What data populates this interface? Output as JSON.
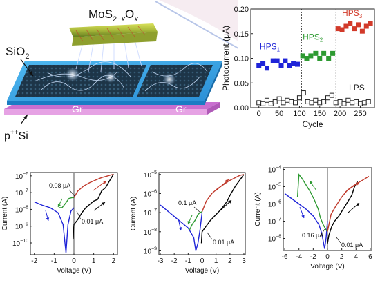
{
  "schematic": {
    "material_label_base": "MoS",
    "material_sub_1": "2−",
    "material_sub_x": "x",
    "material_o": "O",
    "material_sub_2": "x",
    "sio2_label": "SiO",
    "sio2_sub": "2",
    "gr_label_1": "Gr",
    "gr_label_2": "Gr",
    "si_label_p": "p",
    "si_label_sup": "++",
    "si_label_si": "Si",
    "colors": {
      "substrate_top": "#3fa9e6",
      "substrate_side": "#1e88d0",
      "si_layer": "#e48ae0",
      "graphene": "#1f3f57",
      "nanorod": "#a8b83a"
    }
  },
  "chart_data": [
    {
      "type": "scatter",
      "xlabel": "Cycle",
      "ylabel": "Photocurrent (μA)",
      "xlim": [
        -20,
        285
      ],
      "ylim": [
        0,
        0.2
      ],
      "x_ticks": [
        0,
        50,
        100,
        150,
        200,
        250
      ],
      "y_ticks": [
        0.0,
        0.05,
        0.1,
        0.15,
        0.2
      ],
      "y_tick_labels": [
        "0.00",
        "0.05",
        "0.10",
        "0.15",
        "0.20"
      ],
      "dividers": [
        105,
        190
      ],
      "series": [
        {
          "name": "HPS",
          "sub": "1",
          "color": "#1f24d8",
          "filled": true,
          "x": [
            0,
            10,
            20,
            35,
            45,
            55,
            65,
            75,
            85,
            95
          ],
          "y": [
            0.085,
            0.09,
            0.08,
            0.095,
            0.095,
            0.085,
            0.095,
            0.085,
            0.09,
            0.088
          ]
        },
        {
          "name": "HPS",
          "sub": "2",
          "color": "#2e9a32",
          "filled": true,
          "x": [
            108,
            118,
            128,
            140,
            150,
            160,
            172,
            182
          ],
          "y": [
            0.105,
            0.1,
            0.105,
            0.11,
            0.1,
            0.11,
            0.1,
            0.11
          ]
        },
        {
          "name": "HPS",
          "sub": "3",
          "color": "#d23a2a",
          "filled": true,
          "x": [
            195,
            205,
            215,
            225,
            235,
            245,
            255,
            265,
            275
          ],
          "y": [
            0.16,
            0.158,
            0.165,
            0.17,
            0.16,
            0.168,
            0.155,
            0.165,
            0.17
          ]
        },
        {
          "name": "LPS",
          "color": "#222222",
          "filled": false,
          "x": [
            0,
            10,
            20,
            30,
            40,
            50,
            60,
            70,
            80,
            90,
            100,
            110,
            120,
            130,
            140,
            150,
            160,
            170,
            180,
            190,
            200,
            210,
            220,
            230,
            240,
            250,
            260,
            270
          ],
          "y": [
            0.01,
            0.008,
            0.015,
            0.008,
            0.012,
            0.018,
            0.01,
            0.015,
            0.012,
            0.01,
            0.02,
            0.03,
            0.012,
            0.01,
            0.015,
            0.01,
            0.012,
            0.02,
            0.025,
            0.01,
            0.012,
            0.008,
            0.015,
            0.01,
            0.012,
            0.008,
            0.01,
            0.012
          ]
        }
      ]
    },
    {
      "type": "line",
      "log_y": true,
      "xlabel": "Voltage (V)",
      "ylabel": "Current (A)",
      "xlim": [
        -2.2,
        2.2
      ],
      "ylim_exp": [
        -10.7,
        -5.8
      ],
      "x_ticks": [
        -2,
        -1,
        0,
        1,
        2
      ],
      "y_tick_exps": [
        -10,
        -9,
        -8,
        -7,
        -6
      ],
      "annotations": [
        "0.08 μA",
        "0.01 μA"
      ],
      "series": [
        {
          "name": "",
          "color": "#1f24d8",
          "x": [
            -2.0,
            -1.6,
            -1.2,
            -0.8,
            -0.55,
            -0.4,
            -0.3,
            -0.15,
            0.0
          ],
          "logy": [
            -7.55,
            -7.75,
            -7.9,
            -8.2,
            -8.9,
            -10.6,
            -8.9,
            -8.1,
            -7.9
          ]
        },
        {
          "name": "",
          "color": "#2e9a32",
          "x": [
            -0.75,
            -0.6,
            -0.4,
            -0.25,
            -0.1,
            0.0
          ],
          "logy": [
            -7.9,
            -7.9,
            -7.6,
            -7.35,
            -7.3,
            -7.3
          ]
        },
        {
          "name": "",
          "color": "#000000",
          "x": [
            -0.05,
            0.0,
            0.2,
            0.4,
            0.6,
            0.8,
            1.0,
            1.2,
            1.4,
            1.6,
            1.8,
            2.0
          ],
          "logy": [
            -9.8,
            -8.9,
            -8.6,
            -8.2,
            -7.9,
            -7.7,
            -7.5,
            -7.4,
            -6.9,
            -6.7,
            -6.3,
            -5.9
          ]
        },
        {
          "name": "",
          "color": "#c0392b",
          "x": [
            0.0,
            0.2,
            0.5,
            0.8,
            1.1,
            1.4,
            1.7,
            2.0
          ],
          "logy": [
            -7.3,
            -6.9,
            -6.6,
            -6.4,
            -6.25,
            -6.1,
            -6.0,
            -5.9
          ]
        }
      ]
    },
    {
      "type": "line",
      "log_y": true,
      "xlabel": "Voltage (V)",
      "ylabel": "Current (A)",
      "xlim": [
        -3.1,
        3.1
      ],
      "ylim_exp": [
        -9.2,
        -4.9
      ],
      "x_ticks": [
        -3,
        -2,
        -1,
        0,
        1,
        2,
        3
      ],
      "y_tick_exps": [
        -9,
        -8,
        -7,
        -6,
        -5
      ],
      "annotations": [
        "0.1 μA",
        "0.01 μA"
      ],
      "series": [
        {
          "name": "",
          "color": "#1f24d8",
          "x": [
            -3.0,
            -2.5,
            -2.0,
            -1.5,
            -1.0,
            -0.6,
            -0.45,
            -0.3,
            -0.15,
            0.0
          ],
          "logy": [
            -6.6,
            -6.9,
            -7.2,
            -7.5,
            -7.8,
            -8.3,
            -9.0,
            -8.6,
            -7.9,
            -7.0
          ]
        },
        {
          "name": "",
          "color": "#2e9a32",
          "x": [
            -0.9,
            -0.7,
            -0.5,
            -0.3,
            -0.15,
            0.0
          ],
          "logy": [
            -7.9,
            -7.6,
            -7.4,
            -7.1,
            -7.0,
            -6.95
          ]
        },
        {
          "name": "",
          "color": "#000000",
          "x": [
            -0.05,
            0.0,
            0.3,
            0.6,
            1.0,
            1.4,
            1.8,
            2.0,
            2.4,
            2.8,
            3.0
          ],
          "logy": [
            -8.6,
            -8.0,
            -7.7,
            -7.4,
            -7.1,
            -6.8,
            -6.4,
            -6.1,
            -5.6,
            -5.2,
            -5.0
          ]
        },
        {
          "name": "",
          "color": "#c0392b",
          "x": [
            0.0,
            0.3,
            0.7,
            1.1,
            1.5,
            1.9,
            2.3,
            2.7,
            3.0
          ],
          "logy": [
            -6.95,
            -6.4,
            -6.0,
            -5.75,
            -5.55,
            -5.35,
            -5.2,
            -5.05,
            -5.0
          ]
        }
      ]
    },
    {
      "type": "line",
      "log_y": true,
      "xlabel": "Voltage (V)",
      "ylabel": "Current (A)",
      "xlim": [
        -6.2,
        6.2
      ],
      "ylim_exp": [
        -8.7,
        -3.9
      ],
      "x_ticks": [
        -6,
        -4,
        -2,
        0,
        2,
        4,
        6
      ],
      "y_tick_exps": [
        -8,
        -7,
        -6,
        -5,
        -4
      ],
      "annotations": [
        "0.16 μA",
        "0.01 μA"
      ],
      "series": [
        {
          "name": "",
          "color": "#1f24d8",
          "x": [
            -6.0,
            -5.0,
            -4.0,
            -3.0,
            -2.0,
            -1.2,
            -0.8,
            -0.4,
            -0.2,
            0.0
          ],
          "logy": [
            -5.4,
            -5.7,
            -6.0,
            -6.3,
            -6.7,
            -7.2,
            -7.7,
            -8.6,
            -8.0,
            -7.0
          ]
        },
        {
          "name": "",
          "color": "#2e9a32",
          "x": [
            -4.2,
            -4.0,
            -3.6,
            -3.0,
            -2.4,
            -1.8,
            -1.3,
            -1.0,
            -0.6,
            -0.2,
            0.0
          ],
          "logy": [
            -5.6,
            -4.3,
            -4.5,
            -4.9,
            -5.3,
            -5.8,
            -6.3,
            -6.8,
            -7.2,
            -7.5,
            -7.6
          ]
        },
        {
          "name": "",
          "color": "#000000",
          "x": [
            0.0,
            0.2,
            0.6,
            1.0,
            1.6,
            2.2,
            2.8,
            3.4,
            3.8,
            4.2
          ],
          "logy": [
            -8.3,
            -7.8,
            -7.3,
            -7.0,
            -6.7,
            -6.3,
            -5.9,
            -5.5,
            -5.0,
            -4.7
          ]
        },
        {
          "name": "",
          "color": "#c0392b",
          "x": [
            0.0,
            0.5,
            1.2,
            2.0,
            2.8,
            3.6,
            4.4,
            5.2,
            5.8
          ],
          "logy": [
            -7.6,
            -6.6,
            -6.1,
            -5.6,
            -5.2,
            -4.95,
            -4.75,
            -4.55,
            -4.4
          ]
        }
      ]
    }
  ]
}
